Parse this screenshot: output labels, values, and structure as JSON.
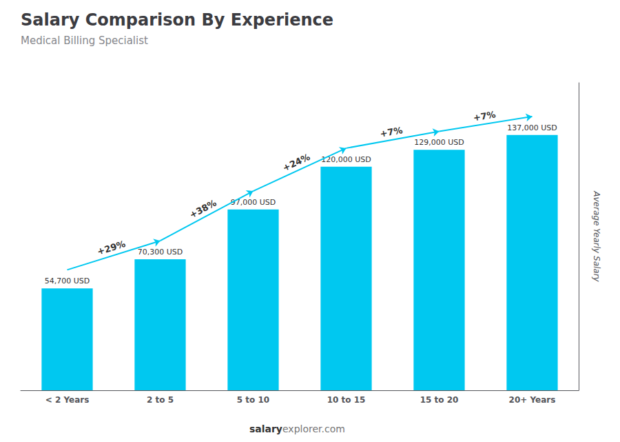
{
  "chart_data": {
    "type": "bar",
    "title": "Salary Comparison By Experience",
    "subtitle": "Medical Billing Specialist",
    "ylabel": "Average Yearly Salary",
    "categories": [
      "< 2 Years",
      "2 to 5",
      "5 to 10",
      "10 to 15",
      "15 to 20",
      "20+ Years"
    ],
    "values": [
      54700,
      70300,
      97000,
      120000,
      129000,
      137000
    ],
    "value_labels": [
      "54,700 USD",
      "70,300 USD",
      "97,000 USD",
      "120,000 USD",
      "129,000 USD",
      "137,000 USD"
    ],
    "data_labels": true,
    "color": "#00C8F0",
    "ylim": [
      0,
      165000
    ],
    "yticks": [],
    "grid": false,
    "tick_labels": "x",
    "annotations": [
      {
        "text": "+29%",
        "from": "< 2 Years",
        "to": "2 to 5"
      },
      {
        "text": "+38%",
        "from": "2 to 5",
        "to": "5 to 10"
      },
      {
        "text": "+24%",
        "from": "5 to 10",
        "to": "10 to 15"
      },
      {
        "text": "+7%",
        "from": "10 to 15",
        "to": "15 to 20"
      },
      {
        "text": "+7%",
        "from": "15 to 20",
        "to": "20+ Years"
      }
    ],
    "footer": [
      "salary",
      "explorer.com"
    ]
  }
}
